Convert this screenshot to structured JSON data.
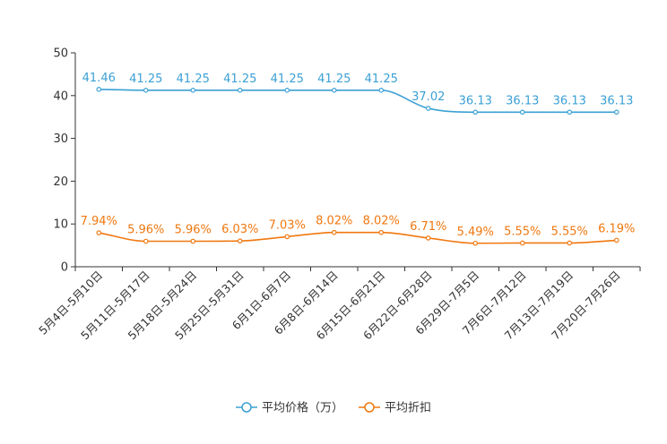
{
  "chart_data": {
    "type": "line",
    "categories": [
      "5月4日-5月10日",
      "5月11日-5月17日",
      "5月18日-5月24日",
      "5月25日-5月31日",
      "6月1日-6月7日",
      "6月8日-6月14日",
      "6月15日-6月21日",
      "6月22日-6月28日",
      "6月29日-7月5日",
      "7月6日-7月12日",
      "7月13日-7月19日",
      "7月20日-7月26日"
    ],
    "y_ticks": [
      0,
      10,
      20,
      30,
      40,
      50
    ],
    "ylim": [
      0,
      50
    ],
    "grid": false,
    "legend_position": "bottom-center",
    "series": [
      {
        "name": "平均价格（万）",
        "color": "#3ba0d4",
        "values": [
          41.46,
          41.25,
          41.25,
          41.25,
          41.25,
          41.25,
          41.25,
          37.02,
          36.13,
          36.13,
          36.13,
          36.13
        ],
        "labels": [
          "41.46",
          "41.25",
          "41.25",
          "41.25",
          "41.25",
          "41.25",
          "41.25",
          "37.02",
          "36.13",
          "36.13",
          "36.13",
          "36.13"
        ]
      },
      {
        "name": "平均折扣",
        "color": "#f07810",
        "values": [
          7.94,
          5.96,
          5.96,
          6.03,
          7.03,
          8.02,
          8.02,
          6.71,
          5.49,
          5.55,
          5.55,
          6.19
        ],
        "labels": [
          "7.94%",
          "5.96%",
          "5.96%",
          "6.03%",
          "7.03%",
          "8.02%",
          "8.02%",
          "6.71%",
          "5.49%",
          "5.55%",
          "5.55%",
          "6.19%"
        ]
      }
    ]
  }
}
